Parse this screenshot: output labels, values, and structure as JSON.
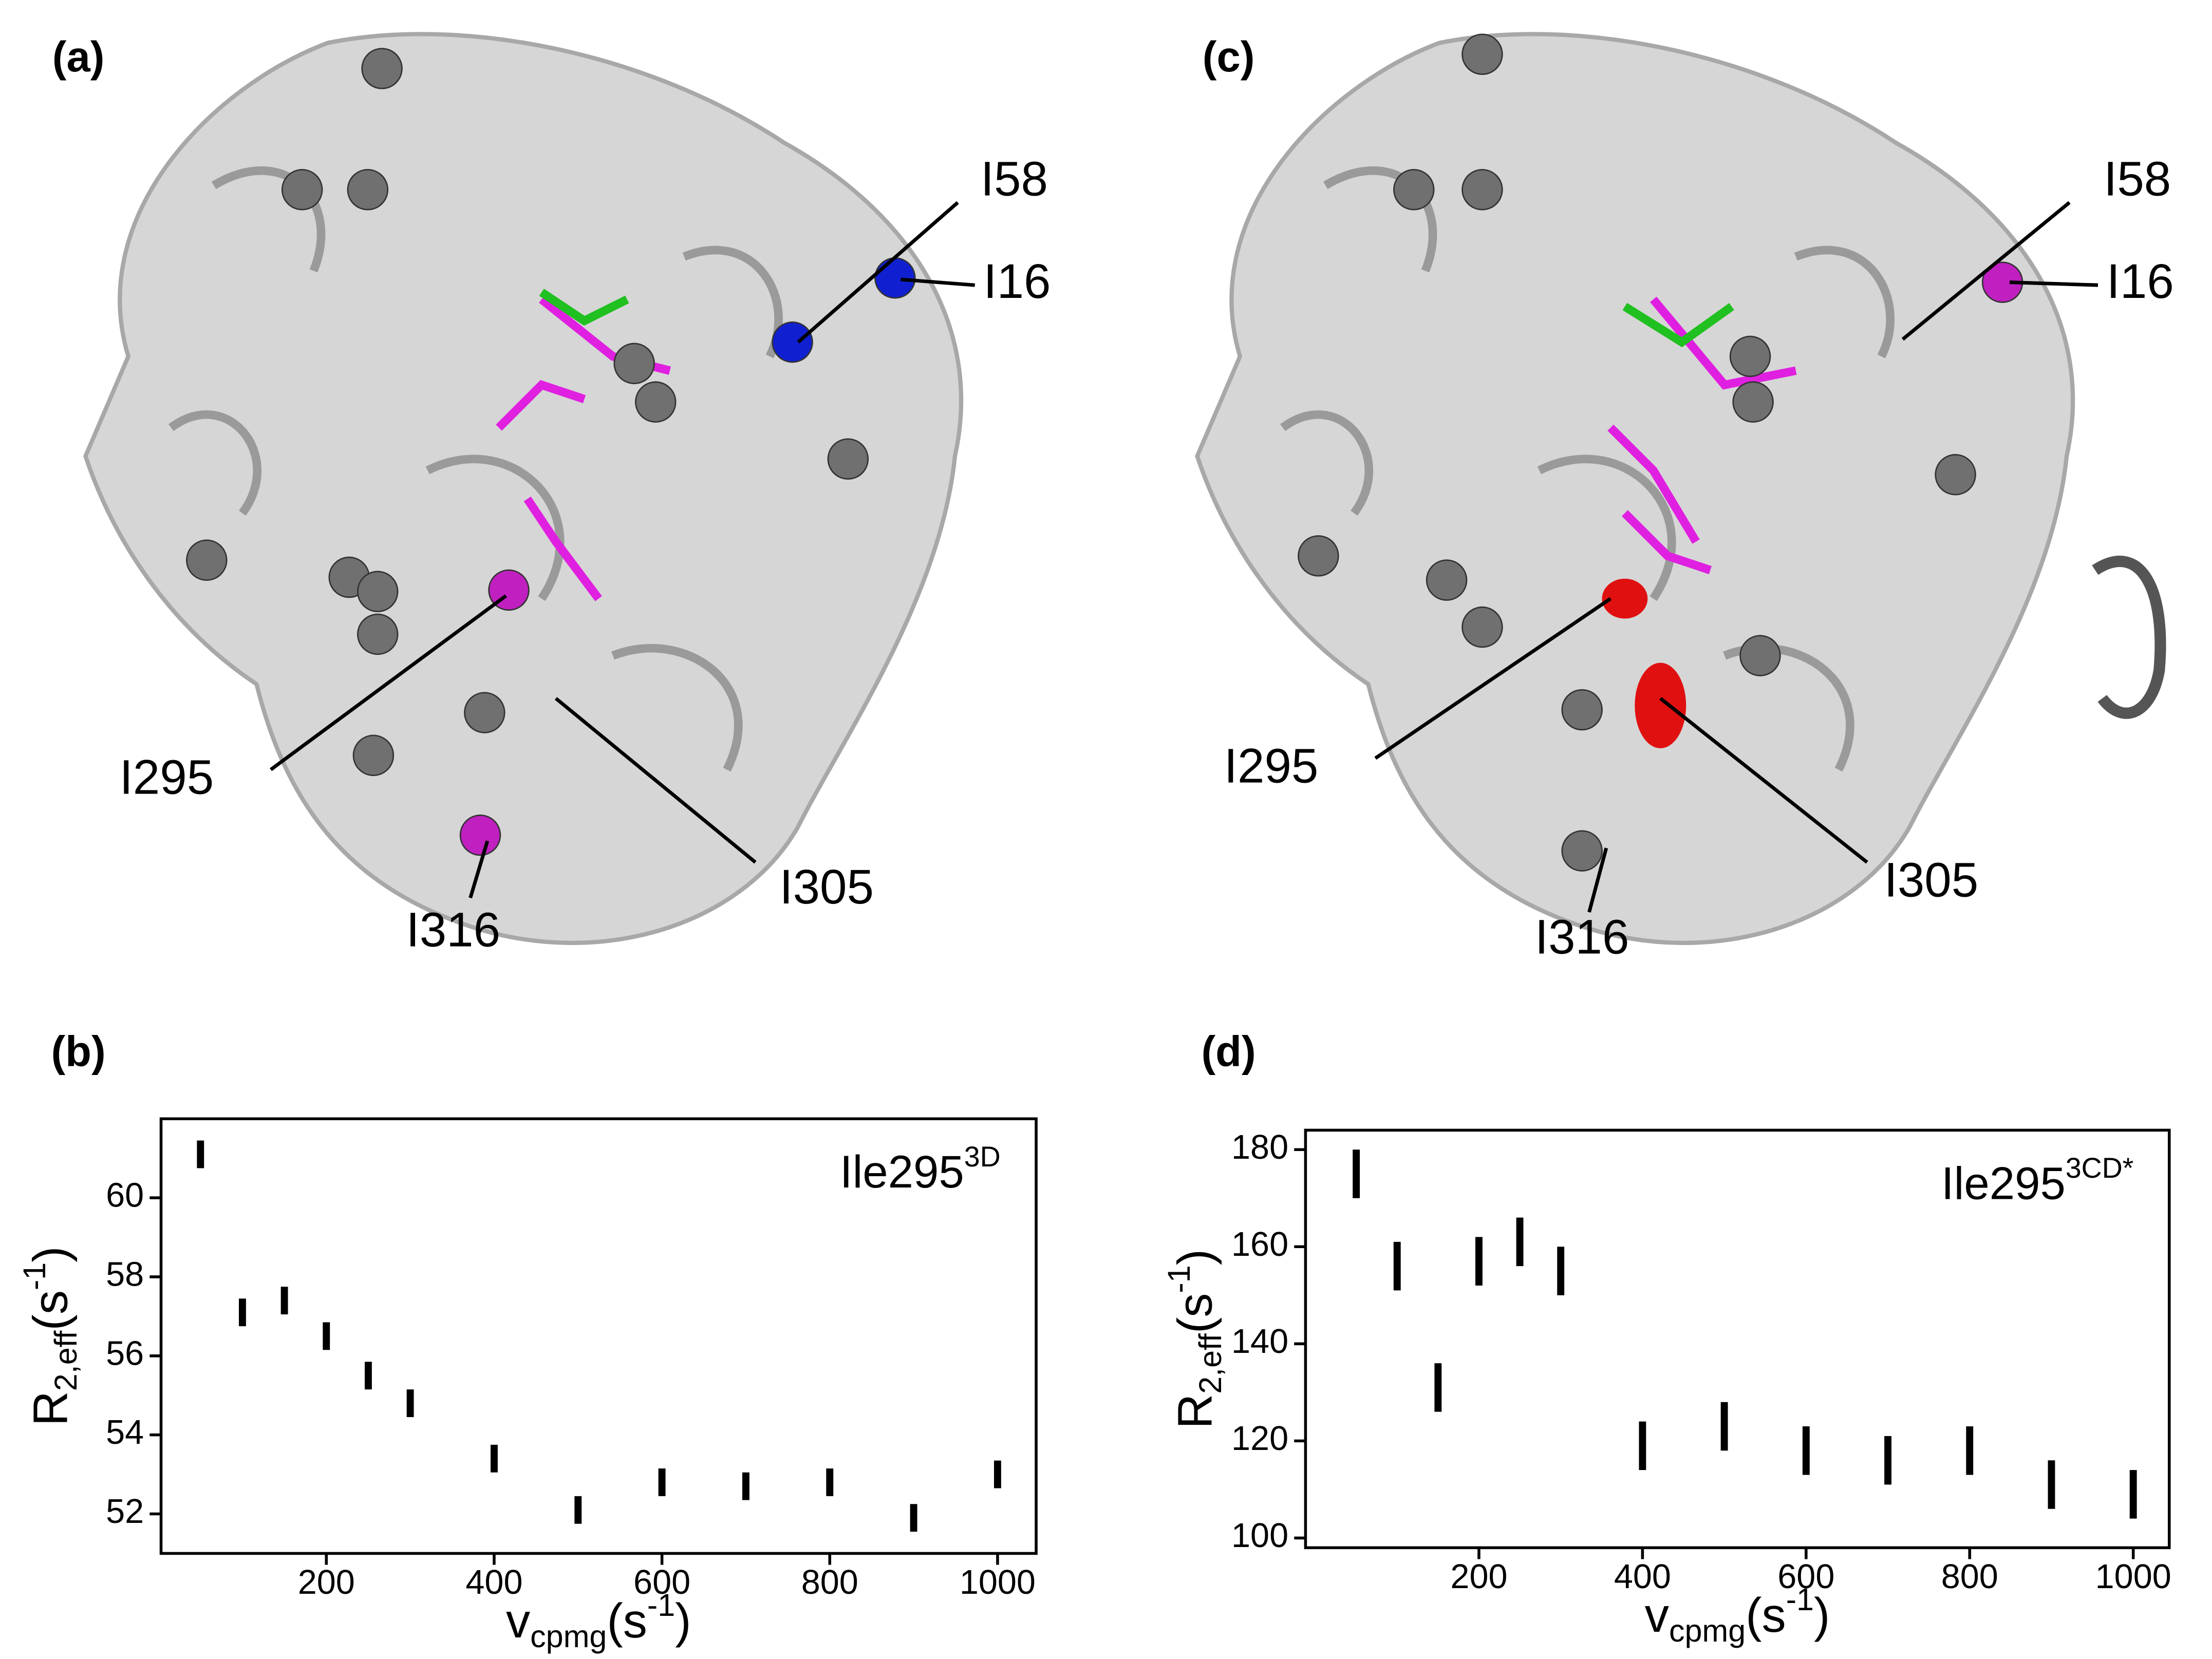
{
  "structures": [
    {
      "panel": "(a)",
      "labels": [
        "I58",
        "I16",
        "I295",
        "I305",
        "I316"
      ]
    },
    {
      "panel": "(c)",
      "labels": [
        "I58",
        "I16",
        "I295",
        "I305",
        "I316"
      ]
    }
  ],
  "chart_data": [
    {
      "type": "errorbar",
      "panel": "(b)",
      "annotation": {
        "text": "Ile295",
        "sup": "3D"
      },
      "xlabel": {
        "main": "v",
        "sub": "cpmg",
        "open": "(s",
        "sup": "-1",
        "close": ")"
      },
      "ylabel": {
        "main": "R",
        "sub": "2,eff",
        "open": "(s",
        "sup": "-1",
        "close": ")"
      },
      "x": [
        50,
        100,
        150,
        200,
        250,
        300,
        400,
        500,
        600,
        700,
        800,
        900,
        1000
      ],
      "values": [
        61.1,
        57.1,
        57.4,
        56.5,
        55.5,
        54.8,
        53.4,
        52.1,
        52.8,
        52.7,
        52.8,
        51.9,
        53.0
      ],
      "errors": [
        0.35,
        0.35,
        0.35,
        0.35,
        0.35,
        0.35,
        0.35,
        0.35,
        0.35,
        0.35,
        0.35,
        0.35,
        0.35
      ],
      "color": "#000000",
      "xlim": [
        3,
        1046
      ],
      "ylim": [
        51,
        62
      ],
      "xticks": [
        200,
        400,
        600,
        800,
        1000
      ],
      "yticks": [
        52,
        54,
        56,
        58,
        60
      ]
    },
    {
      "type": "errorbar",
      "panel": "(d)",
      "annotation": {
        "text": "Ile295",
        "sup": "3CD*"
      },
      "xlabel": {
        "main": "v",
        "sub": "cpmg",
        "open": "(s",
        "sup": "-1",
        "close": ")"
      },
      "ylabel": {
        "main": "R",
        "sub": "2,eff",
        "open": "(s",
        "sup": "-1",
        "close": ")"
      },
      "x": [
        50,
        100,
        150,
        200,
        250,
        300,
        400,
        500,
        600,
        700,
        800,
        900,
        1000
      ],
      "values": [
        175,
        156,
        131,
        157,
        161,
        155,
        119,
        123,
        118,
        116,
        118,
        111,
        109
      ],
      "errors": [
        5,
        5,
        5,
        5,
        5,
        5,
        5,
        5,
        5,
        5,
        5,
        5,
        5
      ],
      "color": "#000000",
      "xlim": [
        -12,
        1044
      ],
      "ylim": [
        98,
        184
      ],
      "xticks": [
        200,
        400,
        600,
        800,
        1000
      ],
      "yticks": [
        100,
        120,
        140,
        160,
        180
      ]
    }
  ]
}
